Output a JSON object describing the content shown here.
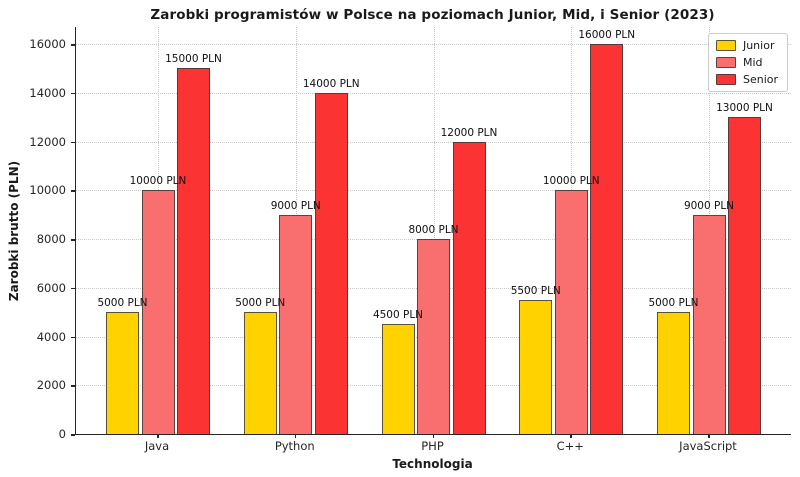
{
  "chart_data": {
    "type": "bar",
    "title": "Zarobki programistów w Polsce na poziomach Junior, Mid, i Senior (2023)",
    "xlabel": "Technologia",
    "ylabel": "Zarobki brutto (PLN)",
    "categories": [
      "Java",
      "Python",
      "PHP",
      "C++",
      "JavaScript"
    ],
    "series": [
      {
        "name": "Junior",
        "color": "#FFD200",
        "values": [
          5000,
          5000,
          4500,
          5500,
          5000
        ]
      },
      {
        "name": "Mid",
        "color": "#F96E6E",
        "values": [
          10000,
          9000,
          8000,
          10000,
          9000
        ]
      },
      {
        "name": "Senior",
        "color": "#FB3333",
        "values": [
          15000,
          14000,
          12000,
          16000,
          13000
        ]
      }
    ],
    "value_label_suffix": " PLN",
    "yticks": [
      0,
      2000,
      4000,
      6000,
      8000,
      10000,
      12000,
      14000,
      16000
    ],
    "ylim": [
      0,
      16700
    ],
    "grid": "dotted, both axes",
    "legend_position": "upper right",
    "colors": {
      "junior": "#FFD200",
      "mid": "#F96E6E",
      "senior": "#FB3333",
      "bar_edge": "#3C3C3C",
      "grid": "#C8C8C8",
      "axis": "#262626"
    }
  }
}
